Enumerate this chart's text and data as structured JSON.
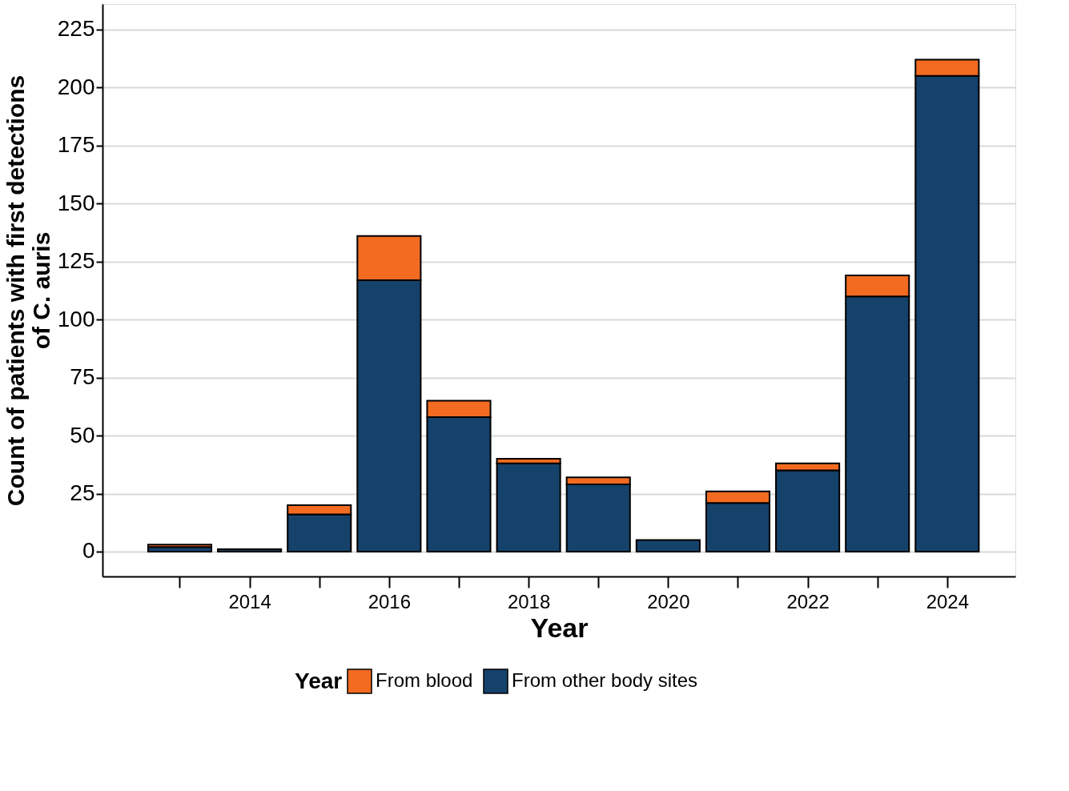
{
  "chart_data": {
    "type": "bar",
    "stacked": true,
    "xlabel": "Year",
    "ylabel": "Count of patients with first detections\nof C. auris",
    "legend_title": "Year",
    "legend": "bottom",
    "grid": "y",
    "x": [
      2013,
      2014,
      2015,
      2016,
      2017,
      2018,
      2019,
      2020,
      2021,
      2022,
      2023,
      2024
    ],
    "series": [
      {
        "name": "From other body sites",
        "color": "#15426b",
        "values": [
          2,
          1,
          16,
          117,
          58,
          38,
          29,
          5,
          21,
          35,
          110,
          205
        ]
      },
      {
        "name": "From blood",
        "color": "#f26b21",
        "values": [
          1,
          null,
          4,
          19,
          7,
          2,
          3,
          null,
          5,
          3,
          9,
          7
        ]
      }
    ],
    "xlim": [
      2011.95,
      2024.92
    ],
    "xticks": [
      {
        "value": 2013,
        "label": null
      },
      2014,
      {
        "value": 2015,
        "label": null
      },
      2016,
      {
        "value": 2017,
        "label": null
      },
      2018,
      {
        "value": 2019,
        "label": null
      },
      2020,
      {
        "value": 2021,
        "label": null
      },
      2022,
      {
        "value": 2023,
        "label": null
      },
      2024
    ],
    "ylim": [
      -10.7,
      236
    ],
    "yticks": [
      0,
      25,
      50,
      75,
      100,
      125,
      150,
      175,
      200,
      225
    ]
  }
}
